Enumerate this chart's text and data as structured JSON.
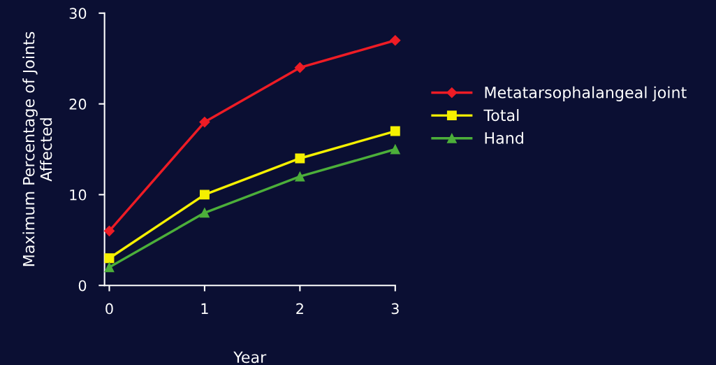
{
  "chart_data": {
    "type": "line",
    "xlabel": "Year",
    "ylabel": "Maximum Percentage of Joints\nAffected",
    "x": [
      0,
      1,
      2,
      3
    ],
    "xlim": [
      -0.05,
      3
    ],
    "xticks": [
      0,
      1,
      2,
      3
    ],
    "ylim": [
      0,
      30
    ],
    "yticks": [
      0,
      10,
      20,
      30
    ],
    "series": [
      {
        "name": "Metatarsophalangeal joint",
        "color": "#ee1c25",
        "marker": "diamond",
        "values": [
          6,
          18,
          24,
          27
        ]
      },
      {
        "name": "Total",
        "color": "#f5f000",
        "marker": "square",
        "values": [
          3,
          10,
          14,
          17
        ]
      },
      {
        "name": "Hand",
        "color": "#4caf3a",
        "marker": "triangle",
        "values": [
          2,
          8,
          12,
          15
        ]
      }
    ],
    "grid": false,
    "legend": "right",
    "line_style": "solid"
  }
}
